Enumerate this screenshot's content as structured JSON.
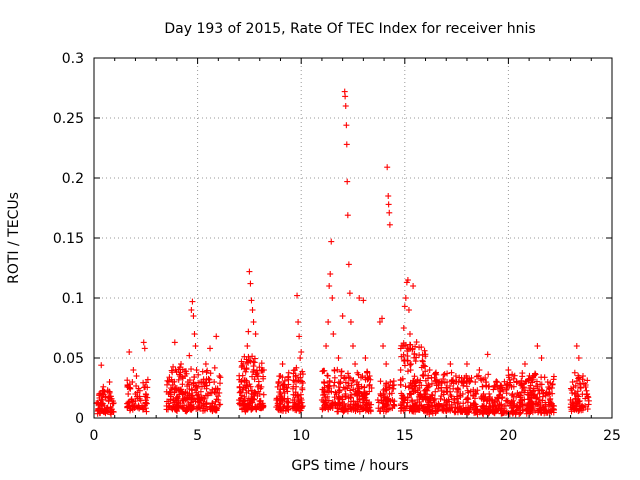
{
  "chart_data": {
    "type": "scatter",
    "title": "Day 193 of 2015, Rate Of TEC Index for receiver hnis",
    "xlabel": "GPS time / hours",
    "ylabel": "ROTI / TECUs",
    "xlim": [
      0,
      25
    ],
    "ylim": [
      0,
      0.3
    ],
    "xticks": [
      0,
      5,
      10,
      15,
      20,
      25
    ],
    "xtick_labels": [
      "0",
      "5",
      "10",
      "15",
      "20",
      "25"
    ],
    "yticks": [
      0,
      0.05,
      0.1,
      0.15,
      0.2,
      0.25,
      0.3
    ],
    "ytick_labels": [
      "0",
      "0.05",
      "0.1",
      "0.15",
      "0.2",
      "0.25",
      "0.3"
    ],
    "grid": true,
    "marker": "+",
    "color": "#ff0000",
    "series": [
      {
        "name": "ROTI",
        "points": [
          [
            0.2,
            0.012
          ],
          [
            0.25,
            0.02
          ],
          [
            0.3,
            0.008
          ],
          [
            0.35,
            0.044
          ],
          [
            0.4,
            0.015
          ],
          [
            0.45,
            0.026
          ],
          [
            0.5,
            0.01
          ],
          [
            0.55,
            0.018
          ],
          [
            0.6,
            0.006
          ],
          [
            0.7,
            0.014
          ],
          [
            0.75,
            0.022
          ],
          [
            0.8,
            0.009
          ],
          [
            0.85,
            0.016
          ],
          [
            0.9,
            0.012
          ],
          [
            0.95,
            0.005
          ],
          [
            0.75,
            0.03
          ],
          [
            1.6,
            0.012
          ],
          [
            1.65,
            0.02
          ],
          [
            1.7,
            0.055
          ],
          [
            1.75,
            0.025
          ],
          [
            1.8,
            0.015
          ],
          [
            1.85,
            0.03
          ],
          [
            1.9,
            0.04
          ],
          [
            1.95,
            0.01
          ],
          [
            2.0,
            0.02
          ],
          [
            2.05,
            0.035
          ],
          [
            2.1,
            0.018
          ],
          [
            2.4,
            0.063
          ],
          [
            2.45,
            0.058
          ],
          [
            2.5,
            0.02
          ],
          [
            2.55,
            0.012
          ],
          [
            2.6,
            0.032
          ],
          [
            3.5,
            0.01
          ],
          [
            3.6,
            0.02
          ],
          [
            3.7,
            0.015
          ],
          [
            3.8,
            0.03
          ],
          [
            3.9,
            0.063
          ],
          [
            4.0,
            0.025
          ],
          [
            4.1,
            0.01
          ],
          [
            4.2,
            0.045
          ],
          [
            4.3,
            0.02
          ],
          [
            4.4,
            0.035
          ],
          [
            4.5,
            0.015
          ],
          [
            4.6,
            0.052
          ],
          [
            4.7,
            0.09
          ],
          [
            4.75,
            0.097
          ],
          [
            4.8,
            0.085
          ],
          [
            4.85,
            0.07
          ],
          [
            4.9,
            0.06
          ],
          [
            4.95,
            0.04
          ],
          [
            5.0,
            0.025
          ],
          [
            5.1,
            0.015
          ],
          [
            5.2,
            0.03
          ],
          [
            5.3,
            0.01
          ],
          [
            5.4,
            0.045
          ],
          [
            5.5,
            0.02
          ],
          [
            5.6,
            0.058
          ],
          [
            5.7,
            0.012
          ],
          [
            5.8,
            0.03
          ],
          [
            5.9,
            0.068
          ],
          [
            6.0,
            0.015
          ],
          [
            6.05,
            0.035
          ],
          [
            7.0,
            0.015
          ],
          [
            7.1,
            0.03
          ],
          [
            7.2,
            0.045
          ],
          [
            7.3,
            0.025
          ],
          [
            7.4,
            0.06
          ],
          [
            7.45,
            0.072
          ],
          [
            7.5,
            0.122
          ],
          [
            7.55,
            0.112
          ],
          [
            7.6,
            0.098
          ],
          [
            7.65,
            0.09
          ],
          [
            7.7,
            0.08
          ],
          [
            7.8,
            0.07
          ],
          [
            7.9,
            0.035
          ],
          [
            8.0,
            0.02
          ],
          [
            8.1,
            0.01
          ],
          [
            8.2,
            0.04
          ],
          [
            8.8,
            0.015
          ],
          [
            8.9,
            0.03
          ],
          [
            9.0,
            0.02
          ],
          [
            9.1,
            0.045
          ],
          [
            9.2,
            0.01
          ],
          [
            9.3,
            0.025
          ],
          [
            9.6,
            0.015
          ],
          [
            9.7,
            0.04
          ],
          [
            9.8,
            0.102
          ],
          [
            9.85,
            0.08
          ],
          [
            9.9,
            0.068
          ],
          [
            9.95,
            0.05
          ],
          [
            10.0,
            0.055
          ],
          [
            10.05,
            0.025
          ],
          [
            11.0,
            0.015
          ],
          [
            11.1,
            0.03
          ],
          [
            11.2,
            0.06
          ],
          [
            11.3,
            0.08
          ],
          [
            11.35,
            0.11
          ],
          [
            11.4,
            0.12
          ],
          [
            11.45,
            0.147
          ],
          [
            11.5,
            0.1
          ],
          [
            11.55,
            0.07
          ],
          [
            11.6,
            0.04
          ],
          [
            11.7,
            0.02
          ],
          [
            11.8,
            0.05
          ],
          [
            11.9,
            0.03
          ],
          [
            12.0,
            0.085
          ],
          [
            12.1,
            0.272
          ],
          [
            12.12,
            0.268
          ],
          [
            12.15,
            0.26
          ],
          [
            12.18,
            0.244
          ],
          [
            12.2,
            0.228
          ],
          [
            12.22,
            0.197
          ],
          [
            12.25,
            0.169
          ],
          [
            12.3,
            0.128
          ],
          [
            12.35,
            0.104
          ],
          [
            12.4,
            0.08
          ],
          [
            12.5,
            0.06
          ],
          [
            12.6,
            0.045
          ],
          [
            12.7,
            0.03
          ],
          [
            12.8,
            0.1
          ],
          [
            12.9,
            0.02
          ],
          [
            13.0,
            0.098
          ],
          [
            13.1,
            0.05
          ],
          [
            13.2,
            0.01
          ],
          [
            13.3,
            0.035
          ],
          [
            13.4,
            0.025
          ],
          [
            13.7,
            0.015
          ],
          [
            13.8,
            0.08
          ],
          [
            13.9,
            0.083
          ],
          [
            13.95,
            0.06
          ],
          [
            14.0,
            0.02
          ],
          [
            14.1,
            0.045
          ],
          [
            14.15,
            0.209
          ],
          [
            14.2,
            0.185
          ],
          [
            14.22,
            0.178
          ],
          [
            14.25,
            0.171
          ],
          [
            14.28,
            0.161
          ],
          [
            14.3,
            0.03
          ],
          [
            14.4,
            0.015
          ],
          [
            14.5,
            0.01
          ],
          [
            14.8,
            0.04
          ],
          [
            14.9,
            0.06
          ],
          [
            14.95,
            0.075
          ],
          [
            15.0,
            0.093
          ],
          [
            15.05,
            0.1
          ],
          [
            15.1,
            0.113
          ],
          [
            15.15,
            0.115
          ],
          [
            15.2,
            0.09
          ],
          [
            15.25,
            0.07
          ],
          [
            15.3,
            0.045
          ],
          [
            15.4,
            0.11
          ],
          [
            15.5,
            0.03
          ],
          [
            15.6,
            0.015
          ],
          [
            15.7,
            0.025
          ],
          [
            15.8,
            0.01
          ],
          [
            15.9,
            0.035
          ],
          [
            16.0,
            0.02
          ],
          [
            16.2,
            0.04
          ],
          [
            16.4,
            0.015
          ],
          [
            16.6,
            0.03
          ],
          [
            16.8,
            0.01
          ],
          [
            17.0,
            0.025
          ],
          [
            17.2,
            0.045
          ],
          [
            17.4,
            0.015
          ],
          [
            17.6,
            0.03
          ],
          [
            17.8,
            0.02
          ],
          [
            18.0,
            0.045
          ],
          [
            18.2,
            0.01
          ],
          [
            18.4,
            0.03
          ],
          [
            18.6,
            0.04
          ],
          [
            18.8,
            0.02
          ],
          [
            19.0,
            0.053
          ],
          [
            19.2,
            0.015
          ],
          [
            19.4,
            0.03
          ],
          [
            19.6,
            0.025
          ],
          [
            19.8,
            0.01
          ],
          [
            20.0,
            0.04
          ],
          [
            20.2,
            0.02
          ],
          [
            20.4,
            0.03
          ],
          [
            20.6,
            0.015
          ],
          [
            20.8,
            0.045
          ],
          [
            21.0,
            0.025
          ],
          [
            21.2,
            0.035
          ],
          [
            21.4,
            0.06
          ],
          [
            21.6,
            0.05
          ],
          [
            21.8,
            0.02
          ],
          [
            21.9,
            0.03
          ],
          [
            22.0,
            0.015
          ],
          [
            22.1,
            0.025
          ],
          [
            22.2,
            0.01
          ],
          [
            23.0,
            0.015
          ],
          [
            23.1,
            0.03
          ],
          [
            23.2,
            0.02
          ],
          [
            23.3,
            0.06
          ],
          [
            23.4,
            0.05
          ],
          [
            23.5,
            0.025
          ],
          [
            23.6,
            0.035
          ],
          [
            23.7,
            0.01
          ],
          [
            23.8,
            0.02
          ]
        ]
      }
    ],
    "dense_bands": [
      {
        "x_range": [
          0.1,
          1.0
        ],
        "y_range": [
          0.003,
          0.02
        ],
        "count": 60
      },
      {
        "x_range": [
          1.6,
          2.6
        ],
        "y_range": [
          0.005,
          0.03
        ],
        "count": 60
      },
      {
        "x_range": [
          3.5,
          6.1
        ],
        "y_range": [
          0.005,
          0.04
        ],
        "count": 240
      },
      {
        "x_range": [
          7.0,
          8.2
        ],
        "y_range": [
          0.005,
          0.05
        ],
        "count": 150
      },
      {
        "x_range": [
          8.8,
          9.4
        ],
        "y_range": [
          0.005,
          0.035
        ],
        "count": 60
      },
      {
        "x_range": [
          9.6,
          10.1
        ],
        "y_range": [
          0.005,
          0.04
        ],
        "count": 60
      },
      {
        "x_range": [
          11.0,
          13.4
        ],
        "y_range": [
          0.005,
          0.04
        ],
        "count": 220
      },
      {
        "x_range": [
          13.7,
          14.5
        ],
        "y_range": [
          0.005,
          0.03
        ],
        "count": 60
      },
      {
        "x_range": [
          14.8,
          16.0
        ],
        "y_range": [
          0.005,
          0.06
        ],
        "count": 160
      },
      {
        "x_range": [
          16.0,
          22.2
        ],
        "y_range": [
          0.003,
          0.035
        ],
        "count": 600
      },
      {
        "x_range": [
          23.0,
          23.9
        ],
        "y_range": [
          0.005,
          0.035
        ],
        "count": 70
      }
    ]
  }
}
